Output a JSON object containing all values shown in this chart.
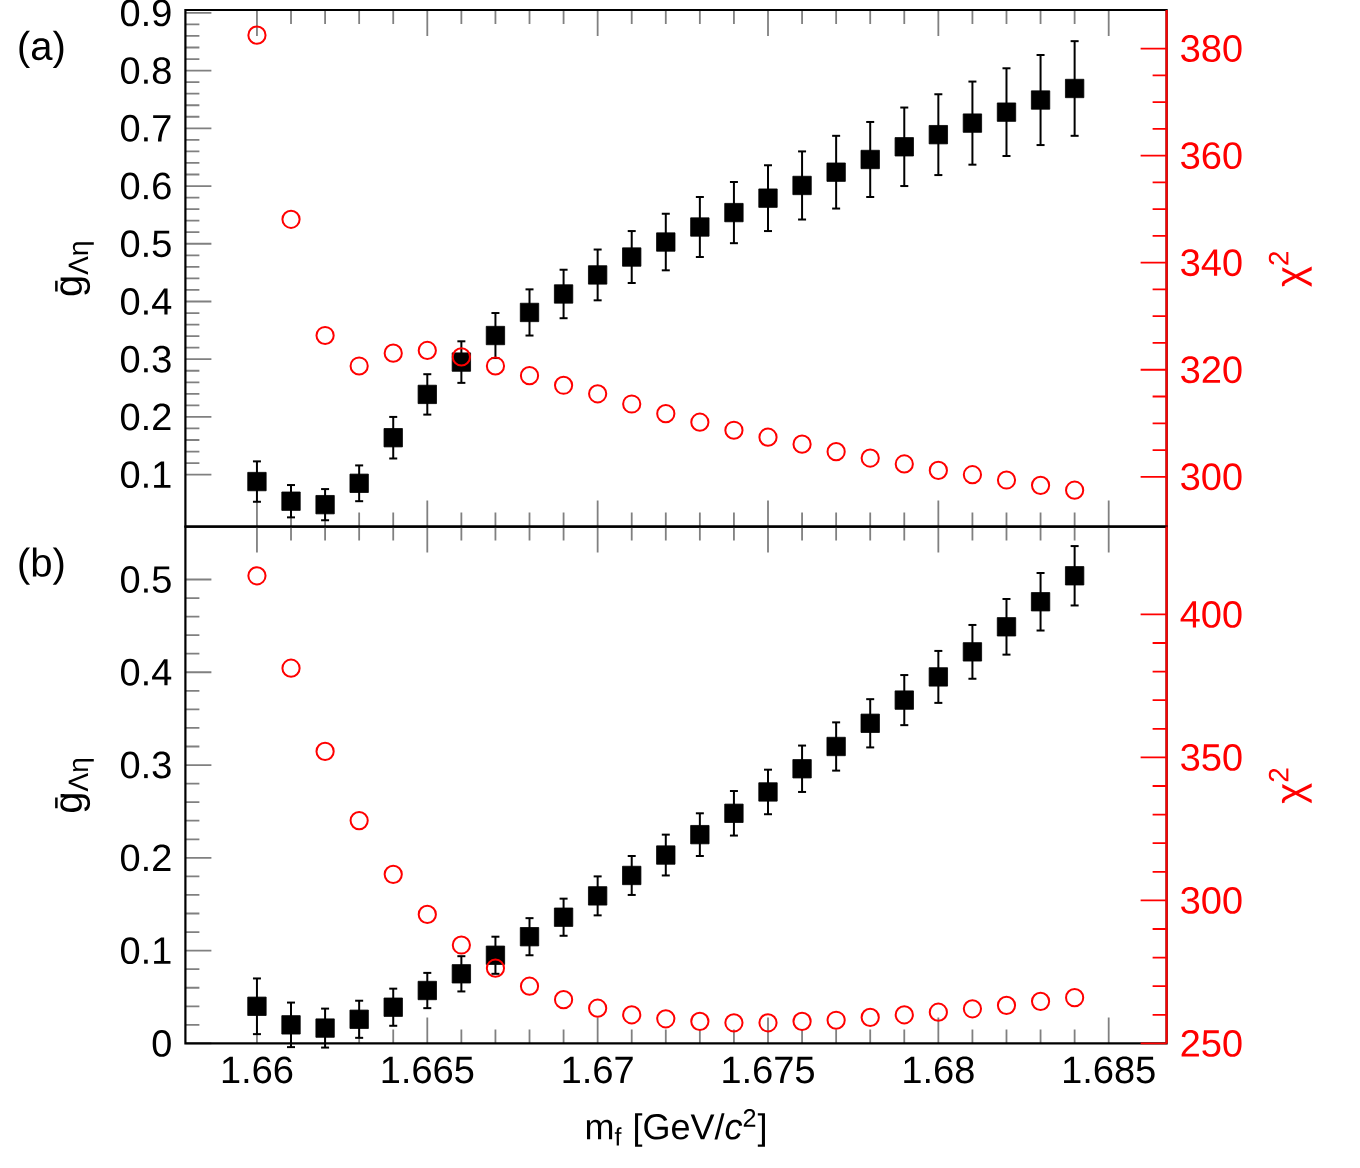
{
  "chart_data": [
    {
      "type": "scatter",
      "annotations": [
        "(a)"
      ],
      "ylabel": "ḡ$_{Λη}$",
      "y2label": "χ$^{2}$",
      "xlim": [
        1.6579,
        1.6867
      ],
      "ylim": [
        0.01,
        0.905
      ],
      "y2lim": [
        290.7,
        387.2
      ],
      "xticks": [
        1.66,
        1.665,
        1.67,
        1.675,
        1.68,
        1.685
      ],
      "yticks": [
        0.1,
        0.2,
        0.3,
        0.4,
        0.5,
        0.6,
        0.7,
        0.8,
        0.9
      ],
      "y2ticks": [
        300,
        320,
        340,
        360,
        380
      ],
      "tick_labels": "y",
      "x": [
        1.66,
        1.661,
        1.662,
        1.663,
        1.664,
        1.665,
        1.666,
        1.667,
        1.668,
        1.669,
        1.67,
        1.671,
        1.672,
        1.673,
        1.674,
        1.675,
        1.676,
        1.677,
        1.678,
        1.679,
        1.68,
        1.681,
        1.682,
        1.683,
        1.684
      ],
      "series": [
        {
          "color": "#000000",
          "marker": "square",
          "values": [
            0.088,
            0.054,
            0.048,
            0.085,
            0.164,
            0.239,
            0.295,
            0.341,
            0.381,
            0.413,
            0.446,
            0.477,
            0.503,
            0.529,
            0.554,
            0.579,
            0.601,
            0.624,
            0.646,
            0.668,
            0.689,
            0.709,
            0.728,
            0.749,
            0.769
          ],
          "errors": [
            0.035,
            0.028,
            0.027,
            0.031,
            0.036,
            0.035,
            0.036,
            0.039,
            0.04,
            0.042,
            0.044,
            0.045,
            0.049,
            0.052,
            0.053,
            0.057,
            0.059,
            0.063,
            0.065,
            0.068,
            0.07,
            0.072,
            0.076,
            0.078,
            0.082
          ]
        },
        {
          "color": "#ff0000",
          "marker": "circle",
          "axis": "y2",
          "values": [
            382.5,
            348.1,
            326.4,
            320.7,
            323.1,
            323.6,
            322.4,
            320.7,
            318.9,
            317.1,
            315.5,
            313.6,
            311.8,
            310.2,
            308.7,
            307.4,
            306.1,
            304.7,
            303.5,
            302.4,
            301.2,
            300.4,
            299.4,
            298.4,
            297.5
          ]
        }
      ]
    },
    {
      "type": "scatter",
      "annotations": [
        "(b)"
      ],
      "xlabel": "m$_{f}$ [GeV/*c*$^{2}$]",
      "ylabel": "ḡ$_{Λη}$",
      "y2label": "χ$^{2}$",
      "xlim": [
        1.6579,
        1.6867
      ],
      "ylim": [
        0,
        0.557
      ],
      "y2lim": [
        250,
        430.7
      ],
      "xticks": [
        1.66,
        1.665,
        1.67,
        1.675,
        1.68,
        1.685
      ],
      "yticks": [
        0,
        0.1,
        0.2,
        0.3,
        0.4,
        0.5
      ],
      "y2ticks": [
        250,
        300,
        350,
        400
      ],
      "x": [
        1.66,
        1.661,
        1.662,
        1.663,
        1.664,
        1.665,
        1.666,
        1.667,
        1.668,
        1.669,
        1.67,
        1.671,
        1.672,
        1.673,
        1.674,
        1.675,
        1.676,
        1.677,
        1.678,
        1.679,
        1.68,
        1.681,
        1.682,
        1.683,
        1.684
      ],
      "series": [
        {
          "color": "#000000",
          "marker": "square",
          "values": [
            0.04,
            0.02,
            0.0165,
            0.026,
            0.039,
            0.057,
            0.075,
            0.095,
            0.115,
            0.136,
            0.159,
            0.181,
            0.203,
            0.225,
            0.248,
            0.271,
            0.296,
            0.32,
            0.345,
            0.37,
            0.395,
            0.422,
            0.449,
            0.476,
            0.504
          ],
          "errors": [
            0.03,
            0.024,
            0.021,
            0.02,
            0.02,
            0.019,
            0.019,
            0.02,
            0.02,
            0.02,
            0.021,
            0.021,
            0.022,
            0.023,
            0.024,
            0.024,
            0.025,
            0.026,
            0.026,
            0.027,
            0.028,
            0.029,
            0.03,
            0.031,
            0.032
          ]
        },
        {
          "color": "#ff0000",
          "marker": "circle",
          "axis": "y2",
          "values": [
            413.5,
            381.2,
            352.1,
            327.9,
            309.1,
            295.1,
            284.4,
            276.3,
            270.0,
            265.3,
            262.3,
            260.0,
            258.6,
            257.7,
            257.2,
            257.2,
            257.7,
            258.1,
            259.1,
            260.0,
            260.9,
            262.1,
            263.3,
            264.7,
            266.0
          ]
        }
      ]
    }
  ]
}
